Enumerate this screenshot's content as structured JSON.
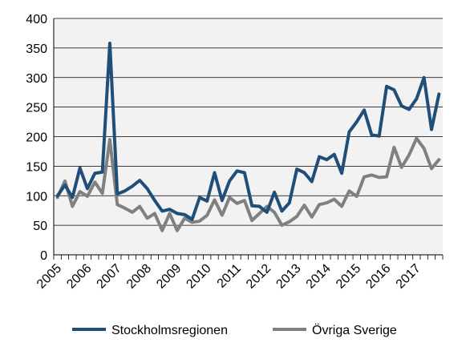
{
  "chart_data": {
    "type": "line",
    "title": "",
    "xlabel": "",
    "ylabel": "",
    "ylim": [
      0,
      400
    ],
    "yticks": [
      0,
      50,
      100,
      150,
      200,
      250,
      300,
      350,
      400
    ],
    "x_tick_labels": [
      "2005",
      "2006",
      "2007",
      "2008",
      "2009",
      "2010",
      "2011",
      "2012",
      "2013",
      "2014",
      "2015",
      "2016",
      "2017"
    ],
    "x_unit": "quarter",
    "x_start": "2005 Q1",
    "n_points": 52,
    "grid": true,
    "plot_background": "#f2f2f2",
    "legend_position": "bottom",
    "series": [
      {
        "name": "Stockholmsregionen",
        "color": "#1f4e79",
        "values": [
          100,
          118,
          97,
          147,
          112,
          138,
          140,
          358,
          103,
          108,
          116,
          126,
          112,
          92,
          74,
          77,
          70,
          68,
          60,
          97,
          91,
          139,
          92,
          125,
          142,
          139,
          83,
          82,
          72,
          106,
          74,
          88,
          145,
          139,
          124,
          166,
          161,
          170,
          138,
          208,
          225,
          245,
          203,
          201,
          285,
          279,
          252,
          246,
          264,
          300,
          212,
          272
        ]
      },
      {
        "name": "Övriga Sverige",
        "color": "#808080",
        "values": [
          97,
          125,
          82,
          107,
          99,
          123,
          104,
          195,
          85,
          79,
          72,
          82,
          62,
          70,
          41,
          70,
          41,
          62,
          55,
          57,
          67,
          93,
          67,
          97,
          87,
          92,
          58,
          70,
          82,
          72,
          50,
          56,
          65,
          84,
          64,
          85,
          88,
          94,
          82,
          108,
          99,
          132,
          135,
          131,
          132,
          182,
          148,
          169,
          197,
          180,
          146,
          161
        ]
      }
    ]
  }
}
